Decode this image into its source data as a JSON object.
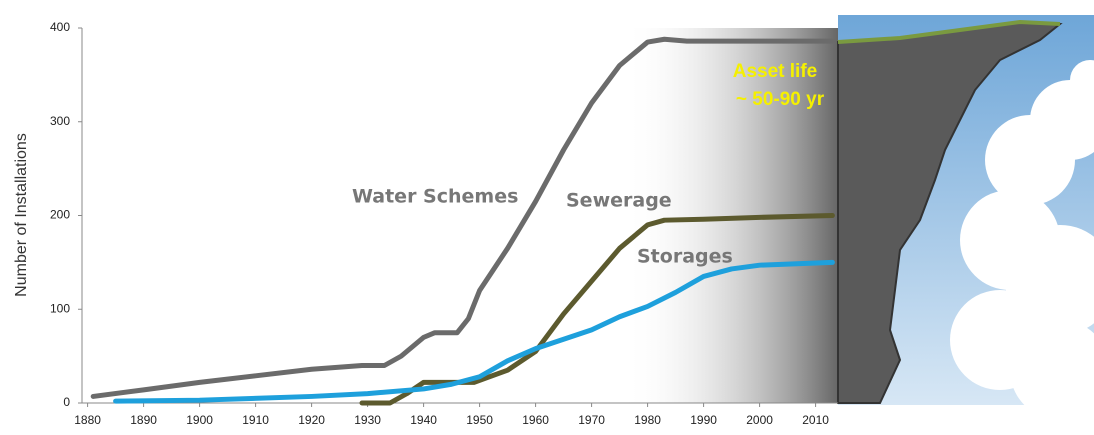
{
  "chart_data": {
    "type": "line",
    "y_label": "Number of Installations",
    "xlim": [
      1879,
      2014
    ],
    "ylim": [
      0,
      400
    ],
    "xticks": [
      1880,
      1890,
      1900,
      1910,
      1920,
      1930,
      1940,
      1950,
      1960,
      1970,
      1980,
      1990,
      2000,
      2010
    ],
    "yticks": [
      0,
      100,
      200,
      300,
      400
    ],
    "annotation": [
      "Asset life",
      "~ 50-90 yr"
    ],
    "series": [
      {
        "name": "Water Schemes",
        "color": "#6b6b6b",
        "x": [
          1881,
          1890,
          1900,
          1910,
          1920,
          1929,
          1933,
          1936,
          1940,
          1942,
          1946,
          1948,
          1950,
          1955,
          1960,
          1965,
          1970,
          1975,
          1980,
          1983,
          1987,
          1995,
          2013
        ],
        "values": [
          7,
          14,
          22,
          29,
          36,
          40,
          40,
          50,
          70,
          75,
          75,
          90,
          120,
          165,
          215,
          270,
          320,
          360,
          385,
          388,
          386,
          386,
          386
        ]
      },
      {
        "name": "Sewerage",
        "color": "#5c5a2e",
        "x": [
          1929,
          1934,
          1937,
          1940,
          1945,
          1949,
          1955,
          1960,
          1965,
          1970,
          1975,
          1980,
          1983,
          1990,
          2000,
          2013
        ],
        "values": [
          0,
          0,
          10,
          22,
          22,
          22,
          35,
          55,
          95,
          130,
          165,
          190,
          195,
          196,
          198,
          200
        ]
      },
      {
        "name": "Storages",
        "color": "#1ea0dc",
        "x": [
          1885,
          1900,
          1920,
          1930,
          1940,
          1945,
          1950,
          1955,
          1960,
          1965,
          1970,
          1975,
          1980,
          1985,
          1990,
          1995,
          2000,
          2013
        ],
        "values": [
          2,
          3,
          7,
          10,
          15,
          20,
          28,
          45,
          58,
          68,
          78,
          92,
          103,
          118,
          135,
          143,
          147,
          150
        ]
      }
    ]
  }
}
